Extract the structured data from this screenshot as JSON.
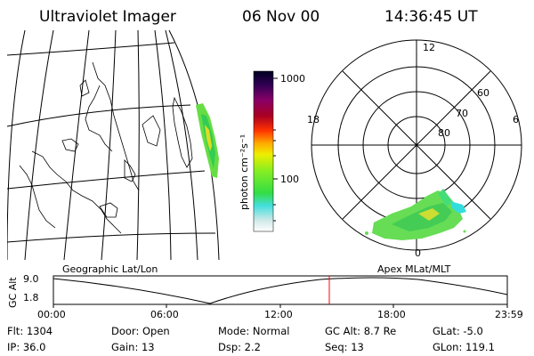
{
  "header": {
    "title": "Ultraviolet Imager",
    "date": "06 Nov 00",
    "time": "14:36:45 UT"
  },
  "colorbar": {
    "unit_label": "photon cm⁻²s⁻¹",
    "tick_1000": "1000",
    "tick_100": "100"
  },
  "polar": {
    "label_top": "12",
    "label_left": "18",
    "label_right": "6",
    "label_bottom": "0",
    "ring_60": "60",
    "ring_70": "70",
    "ring_80": "80"
  },
  "captions": {
    "geo": "Geographic Lat/Lon",
    "apex": "Apex MLat/MLT"
  },
  "alt_plot": {
    "ylabel": "GC Alt",
    "ytick_high": "9.0",
    "ytick_low": "1.8",
    "xticks": [
      "00:00",
      "06:00",
      "12:00",
      "18:00",
      "23:59"
    ]
  },
  "footer": {
    "flt": "Flt: 1304",
    "door": "Door: Open",
    "mode": "Mode: Normal",
    "gcalt": "GC Alt: 8.7 Re",
    "glat": "GLat:  -5.0",
    "ip": "IP: 36.0",
    "gain": "Gain: 13",
    "dsp": "Dsp:     2.2",
    "seq": "Seq: 13",
    "glon": "GLon: 119.1"
  },
  "colors": {
    "marker": "#ff0000",
    "grid": "#000000",
    "background": "#ffffff"
  }
}
